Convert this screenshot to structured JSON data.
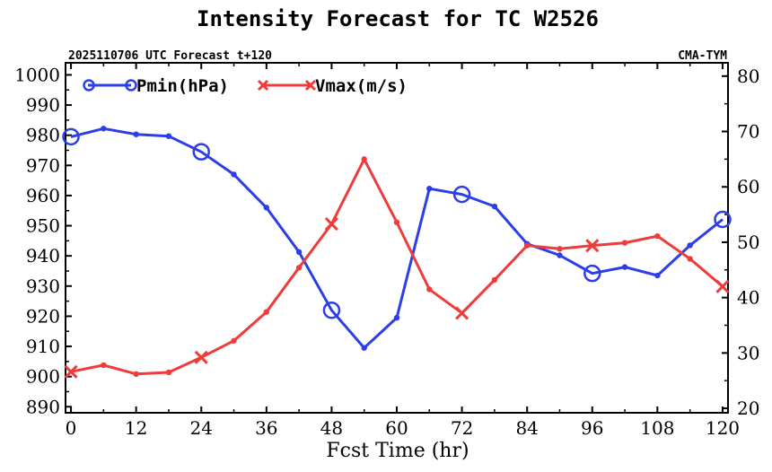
{
  "chart_data": {
    "type": "line",
    "title": "Intensity Forecast for TC W2526",
    "subtitle_left": "2025110706 UTC Forecast t+120",
    "subtitle_right": "CMA-TYM",
    "xlabel": "Fcst Time (hr)",
    "x": [
      0,
      6,
      12,
      18,
      24,
      30,
      36,
      42,
      48,
      54,
      60,
      66,
      72,
      78,
      84,
      90,
      96,
      102,
      108,
      114,
      120
    ],
    "xlim": [
      -1,
      121
    ],
    "xticks": [
      "0",
      "12",
      "24",
      "36",
      "48",
      "60",
      "72",
      "84",
      "96",
      "108",
      "120"
    ],
    "xtick_values": [
      0,
      12,
      24,
      36,
      48,
      60,
      72,
      84,
      96,
      108,
      120
    ],
    "left_axis": {
      "ylim": [
        888,
        1004
      ],
      "ticks": [
        "890",
        "900",
        "910",
        "920",
        "930",
        "940",
        "950",
        "960",
        "970",
        "980",
        "990",
        "1000"
      ],
      "tick_values": [
        890,
        900,
        910,
        920,
        930,
        940,
        950,
        960,
        970,
        980,
        990,
        1000
      ]
    },
    "right_axis": {
      "ylim": [
        19.2,
        82.4
      ],
      "ticks": [
        "20",
        "30",
        "40",
        "50",
        "60",
        "70",
        "80"
      ],
      "tick_values": [
        20,
        30,
        40,
        50,
        60,
        70,
        80
      ]
    },
    "series": [
      {
        "name": "Pmin(hPa)",
        "axis": "left",
        "color": "#2b3ee8",
        "marker": "circle",
        "big_marker_every": 24,
        "values": [
          979.5,
          982.2,
          980.3,
          979.7,
          974.5,
          967.0,
          956.0,
          941.3,
          922.0,
          909.5,
          919.5,
          962.3,
          960.4,
          956.4,
          944.0,
          940.2,
          934.2,
          936.3,
          933.5,
          943.5,
          952.1
        ]
      },
      {
        "name": "Vmax(m/s)",
        "axis": "right",
        "color": "#ee3b3b",
        "marker": "x",
        "big_marker_every": 24,
        "values": [
          26.6,
          27.8,
          26.2,
          26.5,
          29.2,
          32.2,
          37.4,
          45.4,
          53.3,
          65.0,
          53.6,
          41.5,
          37.2,
          43.2,
          49.4,
          48.8,
          49.4,
          49.9,
          51.1,
          47.0,
          42.0
        ]
      }
    ]
  }
}
